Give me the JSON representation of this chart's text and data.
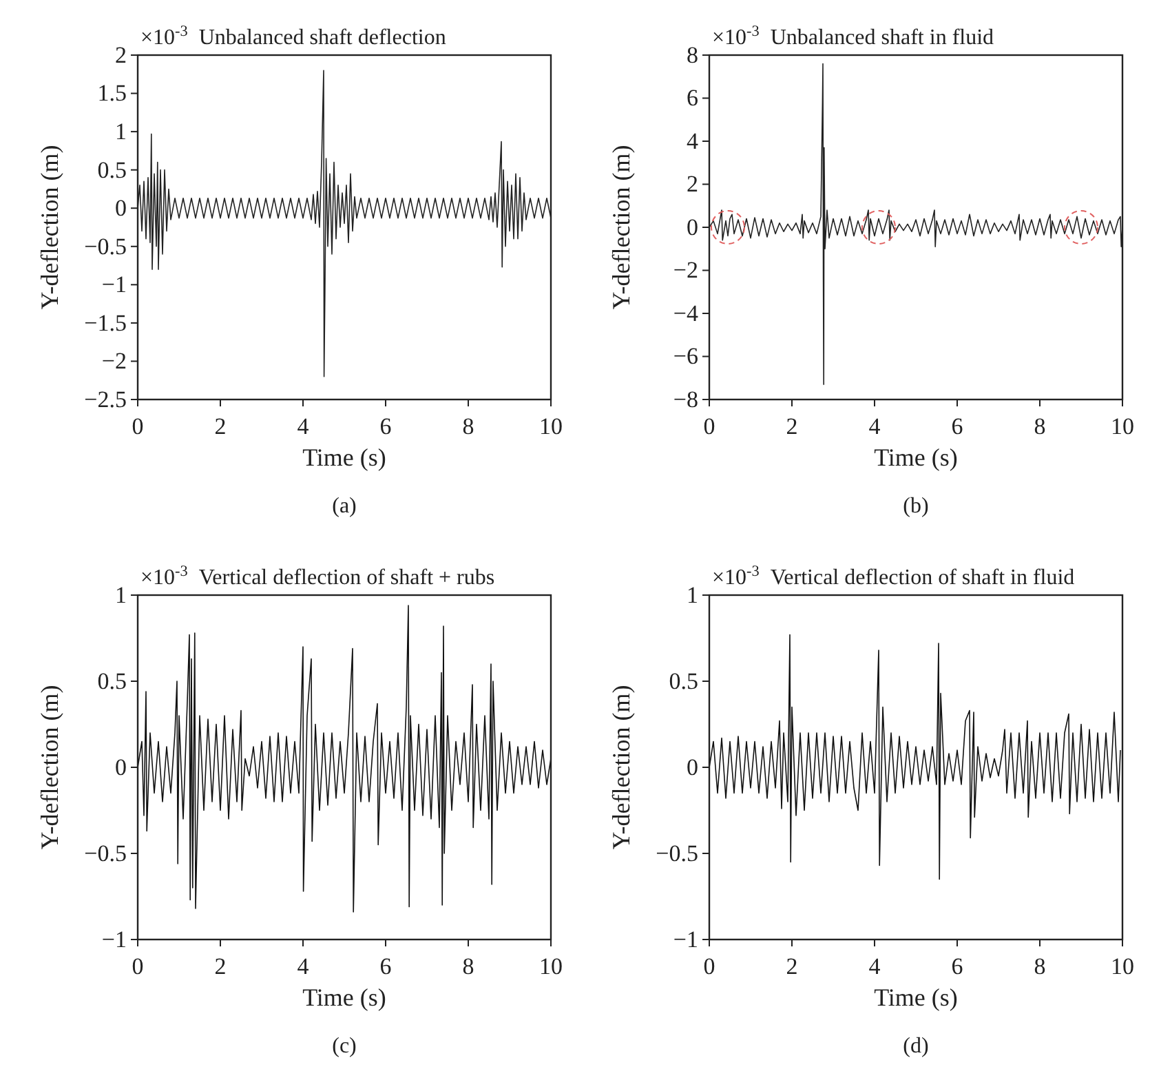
{
  "chart_data": [
    {
      "type": "line",
      "title": "Unbalanced shaft deflection",
      "xlabel": "Time (s)",
      "ylabel": "Y-deflection (m)",
      "annotations": [
        "×10$^{-3}$",
        "(a)"
      ],
      "xlim": [
        0,
        10
      ],
      "xticks": [
        0,
        2,
        4,
        6,
        8,
        10
      ],
      "ylim": [
        -2.5,
        2
      ],
      "yticks": [
        -2.5,
        -2,
        -1.5,
        -1,
        -0.5,
        0,
        0.5,
        1,
        1.5,
        2
      ],
      "grid": false,
      "series": [
        {
          "color": "#222222",
          "x": [
            0,
            0.05,
            0.1,
            0.15,
            0.2,
            0.25,
            0.3,
            0.33,
            0.35,
            0.4,
            0.45,
            0.48,
            0.5,
            0.55,
            0.6,
            0.65,
            0.7,
            0.75,
            0.8,
            0.9,
            1.0,
            1.1,
            1.2,
            1.3,
            1.4,
            1.5,
            1.6,
            1.7,
            1.8,
            1.9,
            2.0,
            2.1,
            2.2,
            2.3,
            2.4,
            2.5,
            2.6,
            2.7,
            2.8,
            2.9,
            3.0,
            3.1,
            3.2,
            3.3,
            3.4,
            3.5,
            3.6,
            3.7,
            3.8,
            3.9,
            4.0,
            4.1,
            4.2,
            4.25,
            4.3,
            4.35,
            4.4,
            4.45,
            4.5,
            4.51,
            4.53,
            4.56,
            4.6,
            4.65,
            4.7,
            4.75,
            4.8,
            4.85,
            4.9,
            4.95,
            5.0,
            5.05,
            5.1,
            5.15,
            5.2,
            5.25,
            5.3,
            5.4,
            5.5,
            5.6,
            5.7,
            5.8,
            5.9,
            6.0,
            6.1,
            6.2,
            6.3,
            6.4,
            6.5,
            6.6,
            6.7,
            6.8,
            6.9,
            7.0,
            7.1,
            7.2,
            7.3,
            7.4,
            7.5,
            7.6,
            7.7,
            7.8,
            7.9,
            8.0,
            8.1,
            8.2,
            8.3,
            8.4,
            8.5,
            8.55,
            8.6,
            8.65,
            8.7,
            8.75,
            8.8,
            8.82,
            8.85,
            8.9,
            8.95,
            9.0,
            9.05,
            9.1,
            9.15,
            9.2,
            9.25,
            9.3,
            9.35,
            9.4,
            9.5,
            9.6,
            9.7,
            9.8,
            9.9,
            10
          ],
          "values": [
            0,
            0.3,
            -0.3,
            0.35,
            -0.4,
            0.4,
            -0.45,
            0.97,
            -0.8,
            0.45,
            -0.5,
            0.6,
            -0.8,
            0.5,
            -0.6,
            0.5,
            -0.3,
            0.25,
            -0.15,
            0.13,
            -0.13,
            0.13,
            -0.13,
            0.13,
            -0.13,
            0.13,
            -0.13,
            0.13,
            -0.13,
            0.13,
            -0.13,
            0.13,
            -0.13,
            0.13,
            -0.13,
            0.13,
            -0.13,
            0.13,
            -0.13,
            0.13,
            -0.13,
            0.13,
            -0.13,
            0.13,
            -0.13,
            0.13,
            -0.13,
            0.13,
            -0.13,
            0.13,
            -0.13,
            0.13,
            -0.15,
            0.18,
            -0.2,
            0.22,
            -0.25,
            0.6,
            1.8,
            -2.2,
            -1.15,
            0.65,
            -0.5,
            0.45,
            -0.6,
            0.6,
            -0.4,
            0.3,
            -0.25,
            0.2,
            -0.2,
            0.3,
            -0.45,
            0.45,
            -0.3,
            0.15,
            -0.13,
            0.13,
            -0.13,
            0.13,
            -0.13,
            0.13,
            -0.13,
            0.13,
            -0.13,
            0.13,
            -0.13,
            0.13,
            -0.13,
            0.13,
            -0.13,
            0.13,
            -0.13,
            0.13,
            -0.13,
            0.13,
            -0.13,
            0.13,
            -0.13,
            0.13,
            -0.13,
            0.13,
            -0.13,
            0.13,
            -0.13,
            0.13,
            -0.13,
            0.13,
            -0.15,
            0.15,
            -0.18,
            0.2,
            -0.25,
            0.3,
            0.87,
            -0.77,
            0.5,
            -0.5,
            0.35,
            -0.3,
            0.3,
            -0.4,
            0.45,
            -0.4,
            0.4,
            -0.3,
            0.2,
            -0.15,
            0.13,
            -0.13,
            0.13,
            -0.13,
            0.13,
            -0.13
          ]
        }
      ]
    },
    {
      "type": "line",
      "title": "Unbalanced shaft in fluid",
      "xlabel": "Time (s)",
      "ylabel": "Y-deflection (m)",
      "annotations": [
        "×10$^{-3}$",
        "(b)"
      ],
      "xlim": [
        0,
        10
      ],
      "xticks": [
        0,
        2,
        4,
        6,
        8,
        10
      ],
      "ylim": [
        -8,
        8
      ],
      "yticks": [
        -8,
        -6,
        -4,
        -2,
        0,
        2,
        4,
        6,
        8
      ],
      "grid": false,
      "series": [
        {
          "color": "#222222",
          "x": [
            0,
            0.1,
            0.2,
            0.3,
            0.32,
            0.4,
            0.45,
            0.5,
            0.55,
            0.6,
            0.7,
            0.8,
            0.9,
            1.0,
            1.1,
            1.2,
            1.3,
            1.4,
            1.5,
            1.6,
            1.7,
            1.8,
            1.9,
            2.0,
            2.1,
            2.2,
            2.25,
            2.27,
            2.3,
            2.4,
            2.5,
            2.6,
            2.7,
            2.74,
            2.75,
            2.76,
            2.77,
            2.78,
            2.8,
            2.85,
            2.9,
            3.0,
            3.1,
            3.2,
            3.3,
            3.4,
            3.5,
            3.6,
            3.7,
            3.8,
            3.85,
            3.87,
            3.9,
            4.0,
            4.1,
            4.2,
            4.3,
            4.35,
            4.37,
            4.4,
            4.5,
            4.6,
            4.7,
            4.8,
            4.9,
            5.0,
            5.1,
            5.2,
            5.3,
            5.4,
            5.45,
            5.47,
            5.5,
            5.6,
            5.7,
            5.8,
            5.9,
            6.0,
            6.1,
            6.2,
            6.3,
            6.4,
            6.5,
            6.6,
            6.7,
            6.8,
            6.9,
            7.0,
            7.1,
            7.2,
            7.3,
            7.4,
            7.5,
            7.52,
            7.6,
            7.7,
            7.8,
            7.9,
            8.0,
            8.1,
            8.2,
            8.25,
            8.27,
            8.3,
            8.4,
            8.5,
            8.6,
            8.7,
            8.8,
            8.9,
            9.0,
            9.1,
            9.2,
            9.3,
            9.4,
            9.5,
            9.6,
            9.7,
            9.8,
            9.9,
            9.95,
            9.97,
            10
          ],
          "values": [
            0,
            0.3,
            -0.3,
            0.8,
            -0.6,
            0.3,
            -0.4,
            0.4,
            0.6,
            -0.3,
            0.35,
            -0.4,
            0.4,
            -0.5,
            0.45,
            -0.4,
            0.4,
            -0.45,
            0.35,
            -0.3,
            0.2,
            -0.2,
            0.15,
            -0.15,
            0.2,
            -0.3,
            0.6,
            -0.5,
            0.3,
            -0.25,
            0.2,
            -0.3,
            0.5,
            5.8,
            7.6,
            -2.4,
            -7.3,
            3.7,
            -1.0,
            0.8,
            -0.5,
            0.4,
            -0.35,
            0.4,
            -0.4,
            0.5,
            -0.4,
            0.3,
            -0.3,
            0.35,
            0.8,
            -0.6,
            0.4,
            -0.4,
            0.4,
            -0.3,
            0.35,
            0.8,
            -0.6,
            0.3,
            -0.2,
            0.15,
            -0.15,
            0.15,
            -0.2,
            0.35,
            -0.4,
            0.4,
            -0.3,
            0.35,
            0.8,
            -0.9,
            0.3,
            -0.3,
            0.35,
            -0.35,
            0.4,
            -0.3,
            0.3,
            -0.35,
            0.6,
            -0.4,
            0.35,
            -0.3,
            0.35,
            -0.3,
            0.2,
            -0.2,
            0.15,
            -0.15,
            0.3,
            -0.3,
            0.6,
            -0.6,
            0.35,
            -0.3,
            0.35,
            -0.35,
            0.4,
            -0.35,
            0.35,
            0.6,
            -0.5,
            0.3,
            -0.3,
            0.35,
            -0.3,
            0.35,
            -0.3,
            0.5,
            -0.5,
            0.4,
            -0.35,
            0.3,
            -0.3,
            0.35,
            -0.35,
            0.3,
            -0.3,
            0.35,
            0.5,
            -0.9,
            0
          ]
        }
      ]
    },
    {
      "type": "line",
      "title": "Vertical deflection of shaft + rubs",
      "xlabel": "Time (s)",
      "ylabel": "Y-deflection (m)",
      "annotations": [
        "×10$^{-3}$",
        "(c)"
      ],
      "xlim": [
        0,
        10
      ],
      "xticks": [
        0,
        2,
        4,
        6,
        8,
        10
      ],
      "ylim": [
        -1,
        1
      ],
      "yticks": [
        -1,
        -0.5,
        0,
        0.5,
        1
      ],
      "grid": false,
      "series": [
        {
          "color": "#111111",
          "x": [
            0,
            0.1,
            0.15,
            0.2,
            0.22,
            0.3,
            0.4,
            0.5,
            0.6,
            0.7,
            0.8,
            0.9,
            0.95,
            0.97,
            1.0,
            1.1,
            1.2,
            1.25,
            1.27,
            1.3,
            1.33,
            1.38,
            1.4,
            1.5,
            1.6,
            1.7,
            1.8,
            1.9,
            2.0,
            2.1,
            2.2,
            2.3,
            2.4,
            2.5,
            2.52,
            2.6,
            2.7,
            2.8,
            2.9,
            3.0,
            3.1,
            3.2,
            3.3,
            3.4,
            3.5,
            3.6,
            3.7,
            3.8,
            3.9,
            4.0,
            4.01,
            4.1,
            4.2,
            4.22,
            4.3,
            4.4,
            4.5,
            4.6,
            4.7,
            4.8,
            4.9,
            5.0,
            5.1,
            5.2,
            5.22,
            5.3,
            5.4,
            5.5,
            5.6,
            5.7,
            5.8,
            5.82,
            5.9,
            6.0,
            6.1,
            6.2,
            6.3,
            6.4,
            6.5,
            6.55,
            6.57,
            6.6,
            6.7,
            6.8,
            6.9,
            7.0,
            7.1,
            7.2,
            7.3,
            7.35,
            7.37,
            7.4,
            7.42,
            7.5,
            7.6,
            7.7,
            7.8,
            7.9,
            8.0,
            8.1,
            8.12,
            8.2,
            8.3,
            8.4,
            8.5,
            8.55,
            8.57,
            8.6,
            8.7,
            8.8,
            8.9,
            9.0,
            9.1,
            9.2,
            9.3,
            9.4,
            9.5,
            9.6,
            9.7,
            9.8,
            9.9,
            10
          ],
          "values": [
            0,
            0.15,
            -0.28,
            0.44,
            -0.37,
            0.2,
            -0.15,
            0.15,
            -0.2,
            0.12,
            -0.15,
            0.2,
            0.5,
            -0.56,
            0.3,
            -0.3,
            0.38,
            0.77,
            -0.77,
            0.63,
            -0.7,
            0.78,
            -0.82,
            0.3,
            -0.25,
            0.28,
            -0.2,
            0.25,
            -0.25,
            0.3,
            -0.3,
            0.22,
            -0.2,
            0.33,
            -0.25,
            0.05,
            -0.05,
            0.12,
            -0.12,
            0.15,
            -0.18,
            0.18,
            -0.2,
            0.2,
            -0.2,
            0.18,
            -0.15,
            0.15,
            -0.15,
            0.7,
            -0.72,
            0.3,
            0.63,
            -0.43,
            0.25,
            -0.25,
            0.2,
            -0.22,
            0.2,
            -0.18,
            0.15,
            -0.15,
            0.2,
            0.69,
            -0.84,
            0.2,
            -0.2,
            0.18,
            -0.2,
            0.15,
            0.37,
            -0.45,
            0.2,
            -0.15,
            0.15,
            -0.18,
            0.2,
            -0.25,
            0.35,
            0.94,
            -0.81,
            0.3,
            -0.25,
            0.25,
            -0.28,
            0.22,
            -0.3,
            0.3,
            -0.35,
            0.55,
            -0.8,
            0.82,
            -0.5,
            0.3,
            -0.25,
            0.15,
            -0.1,
            0.2,
            -0.2,
            0.48,
            -0.35,
            0.25,
            -0.25,
            0.3,
            -0.3,
            0.6,
            -0.68,
            0.5,
            -0.25,
            0.2,
            -0.15,
            0.15,
            -0.15,
            0.12,
            -0.1,
            0.12,
            -0.1,
            0.15,
            -0.12,
            0.1,
            -0.1,
            0.05
          ]
        }
      ]
    },
    {
      "type": "line",
      "title": "Vertical deflection of shaft in fluid",
      "xlabel": "Time (s)",
      "ylabel": "Y-deflection (m)",
      "annotations": [
        "×10$^{-3}$",
        "(d)"
      ],
      "xlim": [
        0,
        10
      ],
      "xticks": [
        0,
        2,
        4,
        6,
        8,
        10
      ],
      "ylim": [
        -1,
        1
      ],
      "yticks": [
        -1,
        -0.5,
        0,
        0.5,
        1
      ],
      "grid": false,
      "series": [
        {
          "color": "#111111",
          "x": [
            0,
            0.1,
            0.2,
            0.3,
            0.4,
            0.5,
            0.6,
            0.7,
            0.8,
            0.9,
            1.0,
            1.1,
            1.2,
            1.3,
            1.4,
            1.5,
            1.6,
            1.7,
            1.75,
            1.8,
            1.9,
            1.95,
            1.97,
            2.0,
            2.1,
            2.2,
            2.3,
            2.4,
            2.5,
            2.6,
            2.7,
            2.8,
            2.9,
            3.0,
            3.1,
            3.2,
            3.3,
            3.4,
            3.5,
            3.6,
            3.7,
            3.8,
            3.9,
            4.0,
            4.1,
            4.12,
            4.2,
            4.3,
            4.4,
            4.5,
            4.6,
            4.7,
            4.8,
            4.9,
            5.0,
            5.1,
            5.2,
            5.3,
            5.4,
            5.5,
            5.55,
            5.57,
            5.6,
            5.7,
            5.8,
            5.9,
            6.0,
            6.1,
            6.2,
            6.3,
            6.32,
            6.4,
            6.42,
            6.5,
            6.6,
            6.7,
            6.8,
            6.9,
            7.0,
            7.1,
            7.15,
            7.2,
            7.3,
            7.4,
            7.5,
            7.6,
            7.7,
            7.72,
            7.8,
            7.9,
            8.0,
            8.1,
            8.2,
            8.3,
            8.4,
            8.5,
            8.6,
            8.7,
            8.72,
            8.8,
            8.9,
            9.0,
            9.1,
            9.2,
            9.3,
            9.4,
            9.5,
            9.6,
            9.7,
            9.8,
            9.9,
            9.95
          ],
          "values": [
            0,
            0.15,
            -0.15,
            0.17,
            -0.18,
            0.15,
            -0.15,
            0.18,
            -0.15,
            0.15,
            -0.12,
            0.15,
            -0.15,
            0.12,
            -0.18,
            0.15,
            -0.12,
            0.27,
            -0.24,
            0.2,
            -0.2,
            0.77,
            -0.55,
            0.35,
            -0.28,
            0.2,
            -0.25,
            0.2,
            -0.18,
            0.2,
            -0.15,
            0.2,
            -0.2,
            0.18,
            -0.15,
            0.18,
            -0.15,
            0.15,
            -0.12,
            -0.25,
            0.2,
            -0.15,
            0.15,
            -0.15,
            0.68,
            -0.57,
            0.35,
            -0.2,
            0.2,
            -0.15,
            0.18,
            -0.12,
            0.15,
            -0.1,
            0.12,
            -0.1,
            0.1,
            -0.08,
            0.12,
            -0.1,
            0.72,
            -0.65,
            0.43,
            -0.1,
            0.08,
            -0.08,
            0.1,
            -0.1,
            0.27,
            0.33,
            -0.41,
            0.32,
            -0.29,
            0.12,
            -0.08,
            0.08,
            -0.06,
            0.05,
            -0.05,
            0.1,
            0.22,
            -0.15,
            0.2,
            -0.18,
            0.2,
            -0.15,
            0.27,
            -0.29,
            0.15,
            -0.18,
            0.2,
            -0.15,
            0.2,
            -0.2,
            0.2,
            -0.18,
            0.2,
            0.31,
            -0.27,
            0.2,
            -0.2,
            0.25,
            -0.18,
            0.22,
            -0.2,
            0.2,
            -0.18,
            0.2,
            -0.15,
            0.32,
            -0.2,
            0.1
          ]
        }
      ]
    }
  ]
}
